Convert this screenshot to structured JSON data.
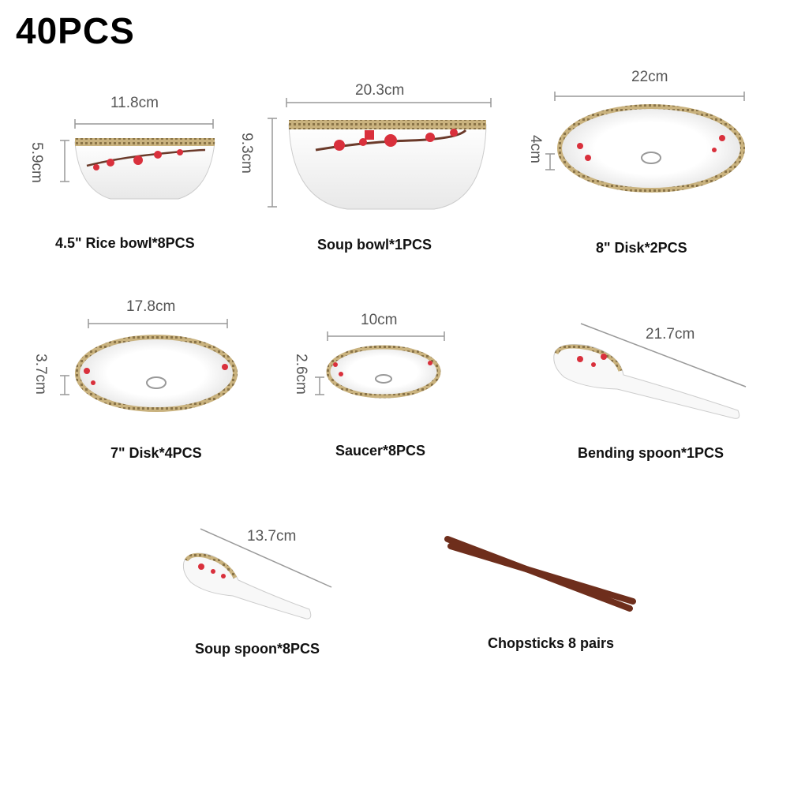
{
  "title": "40PCS",
  "items": [
    {
      "label": "4.5\" Rice bowl*8PCS",
      "dims": [
        "11.8cm",
        "5.9cm"
      ]
    },
    {
      "label": "Soup bowl*1PCS",
      "dims": [
        "20.3cm",
        "9.3cm"
      ]
    },
    {
      "label": "8\" Disk*2PCS",
      "dims": [
        "22cm",
        "4cm"
      ]
    },
    {
      "label": "7\" Disk*4PCS",
      "dims": [
        "17.8cm",
        "3.7cm"
      ]
    },
    {
      "label": "Saucer*8PCS",
      "dims": [
        "10cm",
        "2.6cm"
      ]
    },
    {
      "label": "Bending spoon*1PCS",
      "dims": [
        "21.7cm"
      ]
    },
    {
      "label": "Soup spoon*8PCS",
      "dims": [
        "13.7cm"
      ]
    },
    {
      "label": "Chopsticks 8 pairs",
      "dims": []
    }
  ],
  "colors": {
    "rim": "#b8a06a",
    "blossom": "#d9303c",
    "branch": "#6b3a2a",
    "chopstick": "#6e2e1c"
  }
}
